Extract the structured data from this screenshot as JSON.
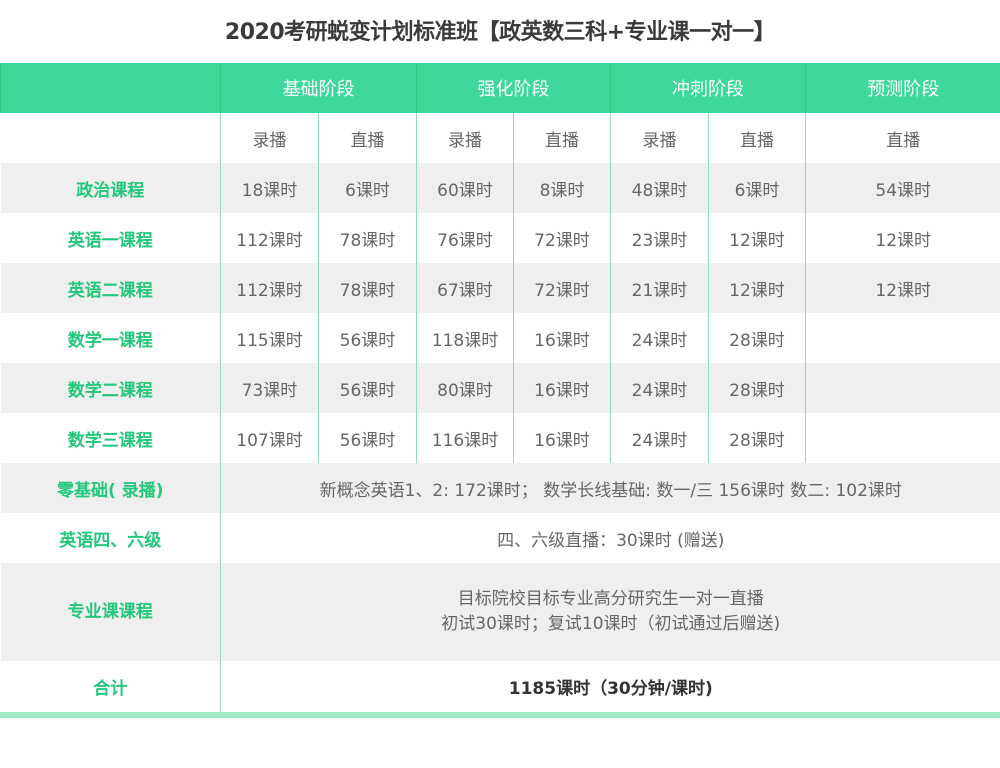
{
  "title": "2020考研蜕变计划标准班【政英数三科+专业课一对一】",
  "stages": [
    "基础阶段",
    "强化阶段",
    "冲刺阶段",
    "预测阶段"
  ],
  "modes": [
    "录播",
    "直播",
    "录播",
    "直播",
    "录播",
    "直播",
    "直播"
  ],
  "rows": [
    {
      "label": "政治课程",
      "cells": [
        "18课时",
        "6课时",
        "60课时",
        "8课时",
        "48课时",
        "6课时",
        "54课时"
      ]
    },
    {
      "label": "英语一课程",
      "cells": [
        "112课时",
        "78课时",
        "76课时",
        "72课时",
        "23课时",
        "12课时",
        "12课时"
      ]
    },
    {
      "label": "英语二课程",
      "cells": [
        "112课时",
        "78课时",
        "67课时",
        "72课时",
        "21课时",
        "12课时",
        "12课时"
      ]
    },
    {
      "label": "数学一课程",
      "cells": [
        "115课时",
        "56课时",
        "118课时",
        "16课时",
        "24课时",
        "28课时",
        ""
      ]
    },
    {
      "label": "数学二课程",
      "cells": [
        "73课时",
        "56课时",
        "80课时",
        "16课时",
        "24课时",
        "28课时",
        ""
      ]
    },
    {
      "label": "数学三课程",
      "cells": [
        "107课时",
        "56课时",
        "116课时",
        "16课时",
        "24课时",
        "28课时",
        ""
      ]
    }
  ],
  "zero": {
    "label": "零基础( 录播)",
    "text": "新概念英语1、2: 172课时；  数学长线基础: 数一/三 156课时  数二: 102课时"
  },
  "cet": {
    "label": "英语四、六级",
    "text": "四、六级直播：30课时 (赠送)"
  },
  "major": {
    "label": "专业课课程",
    "line1": "目标院校目标专业高分研究生一对一直播",
    "line2": "初试30课时；复试10课时（初试通过后赠送)"
  },
  "total": {
    "label": "合计",
    "text": "1185课时（30分钟/课时)"
  },
  "colors": {
    "accent": "#3dd89a",
    "label": "#22c77a",
    "stripe": "#efefef"
  }
}
